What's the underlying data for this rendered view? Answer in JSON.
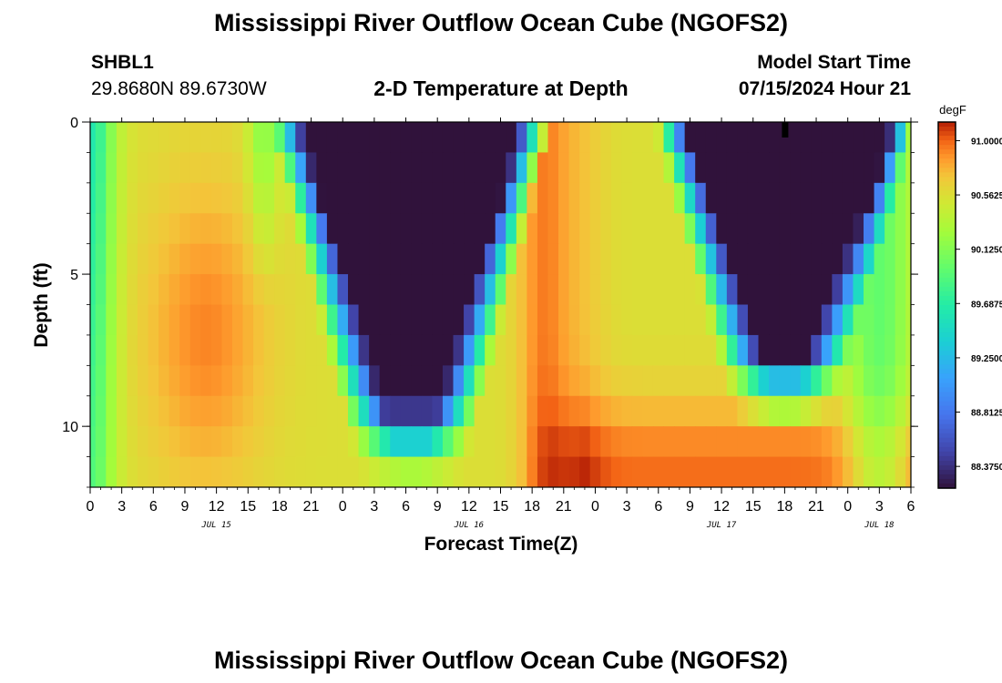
{
  "header": {
    "title": "Mississippi River Outflow Ocean Cube (NGOFS2)",
    "station_id": "SHBL1",
    "coordinates": "29.8680N  89.6730W",
    "subtitle": "2-D Temperature at Depth",
    "model_start_label": "Model Start Time",
    "model_start_value": "07/15/2024 Hour 21",
    "footer_title": "Mississippi River Outflow Ocean Cube (NGOFS2)"
  },
  "chart_data": {
    "type": "heatmap",
    "title": "2-D Temperature at Depth",
    "xlabel": "Forecast Time(Z)",
    "ylabel": "Depth (ft)",
    "x_range_hours": [
      0,
      78
    ],
    "x_tick_labels": [
      "0",
      "3",
      "6",
      "9",
      "12",
      "15",
      "18",
      "21",
      "0",
      "3",
      "6",
      "9",
      "12",
      "15",
      "18",
      "21",
      "0",
      "3",
      "6",
      "9",
      "12",
      "15",
      "18",
      "21",
      "0",
      "3",
      "6"
    ],
    "date_labels": [
      {
        "label": "JUL 15",
        "hour": 12
      },
      {
        "label": "JUL 16",
        "hour": 36
      },
      {
        "label": "JUL 17",
        "hour": 60
      },
      {
        "label": "JUL 18",
        "hour": 75
      }
    ],
    "y_range_ft": [
      0,
      12
    ],
    "y_tick_labels": [
      {
        "value": 0,
        "label": "0"
      },
      {
        "value": 5,
        "label": "5"
      },
      {
        "value": 10,
        "label": "10"
      }
    ],
    "y_minor_ticks": [
      0,
      1,
      2,
      3,
      4,
      5,
      6,
      7,
      8,
      9,
      10,
      11,
      12
    ],
    "grid": false,
    "colorbar": {
      "unit": "degF",
      "min": 88.2,
      "max": 91.15,
      "ticks": [
        {
          "value": 91.0,
          "label": "91.0000"
        },
        {
          "value": 90.5625,
          "label": "90.5625"
        },
        {
          "value": 90.125,
          "label": "90.1250"
        },
        {
          "value": 89.6875,
          "label": "89.6875"
        },
        {
          "value": 89.25,
          "label": "89.2500"
        },
        {
          "value": 88.8125,
          "label": "88.8125"
        },
        {
          "value": 88.375,
          "label": "88.3750"
        }
      ]
    },
    "grid_dims": {
      "time_steps": 79,
      "depth_levels": 12
    },
    "missing_cell": {
      "hour": 66,
      "depth_ft": 0.5
    },
    "field_description": "Temperature (degF) with warm near-surface/mid-depth water around hours 8-14 and 42-48, cool dark-blue plumes near surface centered around hours 30 and 66, and warm bottom layer after hour 44."
  },
  "colors": {
    "background": "#ffffff",
    "axis": "#000000",
    "missing": "#000000"
  }
}
